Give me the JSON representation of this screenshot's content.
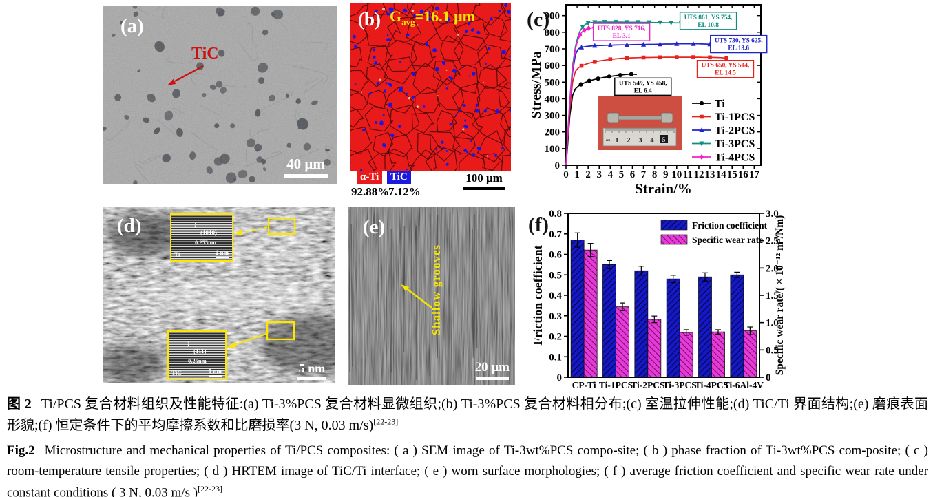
{
  "figure": {
    "panels": {
      "a": {
        "label": "(a)",
        "annotation": "TiC",
        "scale_bar": "40 μm"
      },
      "b": {
        "label": "(b)",
        "grain_prefix": "G",
        "grain_sub": "avg",
        "grain_value": "=16.1 μm",
        "legend": [
          {
            "name": "α-Ti",
            "fraction": "92.88%",
            "color": "#e81c1c"
          },
          {
            "name": "TiC",
            "fraction": "7.12%",
            "color": "#1a1ae0"
          }
        ],
        "scale_bar": "100 μm"
      },
      "c": {
        "label": "(c)"
      },
      "d": {
        "label": "(d)",
        "scale_bar": "5 nm",
        "insets": [
          {
            "plane": "(1010)",
            "spacing": "0.255nm",
            "phase": "Ti",
            "scale": "1 nm",
            "arrow": "↕"
          },
          {
            "plane": "(111)",
            "spacing": "0.25nm",
            "phase": "TiC",
            "scale": "1 nm",
            "arrow": "↕"
          }
        ]
      },
      "e": {
        "label": "(e)",
        "annotation": "Shallow grooves",
        "scale_bar": "20 μm"
      },
      "f": {
        "label": "(f)"
      }
    },
    "caption_zh": {
      "prefix": "图 2",
      "text": "Ti/PCS 复合材料组织及性能特征:(a) Ti-3%PCS 复合材料显微组织;(b) Ti-3%PCS 复合材料相分布;(c) 室温拉伸性能;(d) TiC/Ti 界面结构;(e) 磨痕表面形貌;(f) 恒定条件下的平均摩擦系数和比磨损率(3 N, 0.03 m/s)",
      "ref": "[22-23]"
    },
    "caption_en": {
      "prefix": "Fig.2",
      "text": "Microstructure and mechanical properties of Ti/PCS composites: ( a ) SEM image of Ti-3wt%PCS compo-site; ( b ) phase fraction of Ti-3wt%PCS com-posite; ( c ) room-temperature tensile properties; ( d ) HRTEM image of TiC/Ti interface; ( e ) worn surface morphologies; ( f ) average friction coefficient and specific wear rate under constant conditions ( 3 N, 0.03 m/s )",
      "ref": "[22-23]"
    }
  },
  "chart_data": [
    {
      "id": "tensile",
      "type": "line",
      "xlabel": "Strain/%",
      "ylabel": "Stress/MPa",
      "xlim": [
        0,
        17.6
      ],
      "ylim": [
        0,
        965
      ],
      "xticks": [
        0,
        1,
        2,
        3,
        4,
        5,
        6,
        7,
        8,
        9,
        10,
        11,
        12,
        13,
        14,
        15,
        16,
        17
      ],
      "yticks": [
        0,
        100,
        200,
        300,
        400,
        500,
        600,
        700,
        800,
        900
      ],
      "grid": false,
      "legend_position": "inside-right-bottom",
      "series": [
        {
          "name": "Ti",
          "color": "#000000",
          "marker": "circle",
          "markStart": 6,
          "markStep": 2,
          "points": [
            [
              0,
              0
            ],
            [
              0.15,
              120
            ],
            [
              0.35,
              300
            ],
            [
              0.6,
              420
            ],
            [
              0.85,
              460
            ],
            [
              1.1,
              475
            ],
            [
              1.35,
              486
            ],
            [
              1.7,
              497
            ],
            [
              2.1,
              507
            ],
            [
              2.5,
              515
            ],
            [
              2.9,
              521
            ],
            [
              3.4,
              528
            ],
            [
              3.9,
              533
            ],
            [
              4.4,
              538
            ],
            [
              4.9,
              542
            ],
            [
              5.4,
              546
            ],
            [
              5.9,
              548
            ],
            [
              6.4,
              546
            ]
          ]
        },
        {
          "name": "Ti-1PCS",
          "color": "#e8231f",
          "marker": "square",
          "markStart": 6,
          "markStep": 3,
          "points": [
            [
              0,
              0
            ],
            [
              0.15,
              150
            ],
            [
              0.35,
              340
            ],
            [
              0.6,
              500
            ],
            [
              0.85,
              565
            ],
            [
              1.1,
              585
            ],
            [
              1.4,
              598
            ],
            [
              1.8,
              608
            ],
            [
              2.2,
              616
            ],
            [
              2.6,
              622
            ],
            [
              3.1,
              628
            ],
            [
              3.6,
              633
            ],
            [
              4.0,
              637
            ],
            [
              4.5,
              640
            ],
            [
              5.0,
              643
            ],
            [
              5.5,
              645
            ],
            [
              6.0,
              646
            ],
            [
              6.5,
              647
            ],
            [
              7.0,
              648
            ],
            [
              7.5,
              648
            ],
            [
              8.0,
              649
            ],
            [
              8.5,
              649
            ],
            [
              9.0,
              650
            ],
            [
              9.5,
              650
            ],
            [
              10.0,
              650
            ],
            [
              10.5,
              650
            ],
            [
              11.0,
              650
            ],
            [
              11.5,
              650
            ],
            [
              12.0,
              650
            ],
            [
              12.5,
              649
            ],
            [
              13.0,
              649
            ],
            [
              13.5,
              648
            ],
            [
              14.0,
              647
            ],
            [
              14.5,
              644
            ]
          ]
        },
        {
          "name": "Ti-2PCS",
          "color": "#2025c8",
          "marker": "triangle",
          "markStart": 6,
          "markStep": 3,
          "points": [
            [
              0,
              0
            ],
            [
              0.15,
              170
            ],
            [
              0.35,
              380
            ],
            [
              0.6,
              560
            ],
            [
              0.85,
              665
            ],
            [
              1.1,
              700
            ],
            [
              1.4,
              709
            ],
            [
              1.8,
              714
            ],
            [
              2.2,
              717
            ],
            [
              2.6,
              719
            ],
            [
              3.1,
              720
            ],
            [
              3.6,
              721
            ],
            [
              4.0,
              722
            ],
            [
              4.5,
              723
            ],
            [
              5.0,
              724
            ],
            [
              5.5,
              724
            ],
            [
              6.0,
              725
            ],
            [
              6.5,
              726
            ],
            [
              7.0,
              726
            ],
            [
              7.5,
              727
            ],
            [
              8.0,
              727
            ],
            [
              8.5,
              728
            ],
            [
              9.0,
              729
            ],
            [
              9.5,
              729
            ],
            [
              10.0,
              730
            ],
            [
              10.5,
              730
            ],
            [
              11.0,
              730
            ],
            [
              11.5,
              730
            ],
            [
              12.0,
              730
            ],
            [
              12.5,
              729
            ],
            [
              13.0,
              728
            ],
            [
              13.6,
              726
            ]
          ]
        },
        {
          "name": "Ti-3PCS",
          "color": "#0f8e7e",
          "marker": "triangle-down",
          "markStart": 7,
          "markStep": 2,
          "points": [
            [
              0,
              0
            ],
            [
              0.15,
              180
            ],
            [
              0.35,
              400
            ],
            [
              0.6,
              600
            ],
            [
              0.85,
              715
            ],
            [
              1.05,
              768
            ],
            [
              1.25,
              805
            ],
            [
              1.5,
              832
            ],
            [
              1.75,
              847
            ],
            [
              2.0,
              855
            ],
            [
              2.3,
              858
            ],
            [
              2.6,
              860
            ],
            [
              3.0,
              861
            ],
            [
              3.5,
              861
            ],
            [
              4.0,
              861
            ],
            [
              4.5,
              861
            ],
            [
              5.0,
              861
            ],
            [
              5.5,
              860
            ],
            [
              6.0,
              860
            ],
            [
              6.5,
              860
            ],
            [
              7.0,
              859
            ],
            [
              7.5,
              859
            ],
            [
              8.0,
              858
            ],
            [
              8.5,
              858
            ],
            [
              9.0,
              857
            ],
            [
              9.5,
              857
            ],
            [
              10.0,
              856
            ],
            [
              10.4,
              856
            ],
            [
              10.8,
              855
            ]
          ]
        },
        {
          "name": "Ti-4PCS",
          "color": "#ee22cc",
          "marker": "diamond",
          "markStart": 6,
          "markStep": 2,
          "points": [
            [
              0,
              0
            ],
            [
              0.15,
              175
            ],
            [
              0.35,
              390
            ],
            [
              0.6,
              580
            ],
            [
              0.85,
              700
            ],
            [
              1.05,
              750
            ],
            [
              1.25,
              783
            ],
            [
              1.45,
              802
            ],
            [
              1.65,
              813
            ],
            [
              1.85,
              820
            ],
            [
              2.05,
              824
            ],
            [
              2.3,
              826
            ],
            [
              2.55,
              828
            ],
            [
              2.8,
              828
            ],
            [
              3.1,
              826
            ]
          ]
        }
      ],
      "annotations": [
        {
          "lines": [
            "UTS 861, YS 754,",
            "EL 10.8"
          ],
          "color": "#0f8e7e",
          "cx": 0.73,
          "cy": 0.1
        },
        {
          "lines": [
            "UTS 828, YS 716,",
            "EL 3.1"
          ],
          "color": "#ee22cc",
          "cx": 0.285,
          "cy": 0.17
        },
        {
          "lines": [
            "UTS 730, YS 625,",
            "EL 13.6"
          ],
          "color": "#2025c8",
          "cx": 0.886,
          "cy": 0.245
        },
        {
          "lines": [
            "UTS 650, YS 544,",
            "EL 14.5"
          ],
          "color": "#e8231f",
          "cx": 0.818,
          "cy": 0.4
        },
        {
          "lines": [
            "UTS 549, YS 458,",
            "EL 6.4"
          ],
          "color": "#000000",
          "cx": 0.395,
          "cy": 0.51
        }
      ],
      "inset_photo": {
        "ruler_unit": "cm",
        "ruler_numbers": [
          "1",
          "2",
          "3",
          "4",
          "5"
        ]
      }
    },
    {
      "id": "wear",
      "type": "bar",
      "categories": [
        "CP-Ti",
        "Ti-1PCS",
        "Ti-2PCS",
        "Ti-3PCS",
        "Ti-4PCS",
        "Ti-6Al-4V"
      ],
      "series": [
        {
          "name": "Friction coefficient",
          "axis": "left",
          "color": "#1418c8",
          "hatch_color": "#060633",
          "values": [
            0.67,
            0.55,
            0.52,
            0.48,
            0.49,
            0.5
          ],
          "errors": [
            0.035,
            0.02,
            0.022,
            0.018,
            0.02,
            0.013
          ]
        },
        {
          "name": "Specific wear rate",
          "axis": "right",
          "color": "#e83ad8",
          "hatch_color": "#70106a",
          "values": [
            2.33,
            1.29,
            1.06,
            0.82,
            0.83,
            0.85
          ],
          "errors": [
            0.12,
            0.07,
            0.06,
            0.05,
            0.04,
            0.07
          ]
        }
      ],
      "left_axis": {
        "label": "Friction coefficient",
        "min": 0,
        "max": 0.8,
        "ticks": [
          0,
          0.1,
          0.2,
          0.3,
          0.4,
          0.5,
          0.6,
          0.7,
          0.8
        ]
      },
      "right_axis": {
        "label": "Specific wear rate/( × 10⁻¹² m³/Nm)",
        "min": 0,
        "max": 3.0,
        "ticks": [
          0,
          0.5,
          1.0,
          1.5,
          2.0,
          2.5,
          3.0
        ]
      },
      "legend_position": "top-right",
      "grid": false
    }
  ]
}
